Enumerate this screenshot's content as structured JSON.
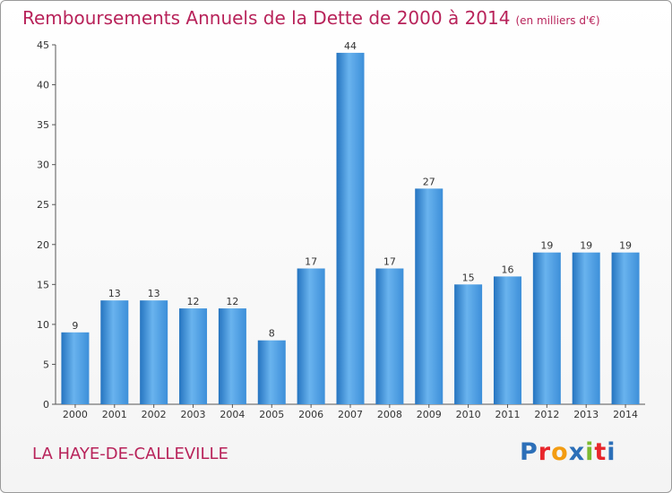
{
  "title": "Remboursements Annuels de la Dette de 2000 à 2014",
  "subtitle": "(en milliers d'€)",
  "city": "LA HAYE-DE-CALLEVILLE",
  "logo": {
    "letters": [
      "P",
      "r",
      "o",
      "x",
      "i",
      "t",
      "i"
    ],
    "colors": [
      "#2c6fb8",
      "#e8262b",
      "#f39c12",
      "#2c6fb8",
      "#7cba2f",
      "#e8262b",
      "#2c6fb8"
    ]
  },
  "colors": {
    "bar": "#3d8fd9",
    "bar_light": "#69b3ee",
    "bar_dark": "#2574c0",
    "title": "#b8235a"
  },
  "chart_data": {
    "type": "bar",
    "categories": [
      "2000",
      "2001",
      "2002",
      "2003",
      "2004",
      "2005",
      "2006",
      "2007",
      "2008",
      "2009",
      "2010",
      "2011",
      "2012",
      "2013",
      "2014"
    ],
    "values": [
      9,
      13,
      13,
      12,
      12,
      8,
      17,
      44,
      17,
      27,
      15,
      16,
      19,
      19,
      19
    ],
    "ylim": [
      0,
      45
    ],
    "yticks": [
      0,
      5,
      10,
      15,
      20,
      25,
      30,
      35,
      40,
      45
    ],
    "grid": false,
    "legend": "none"
  }
}
